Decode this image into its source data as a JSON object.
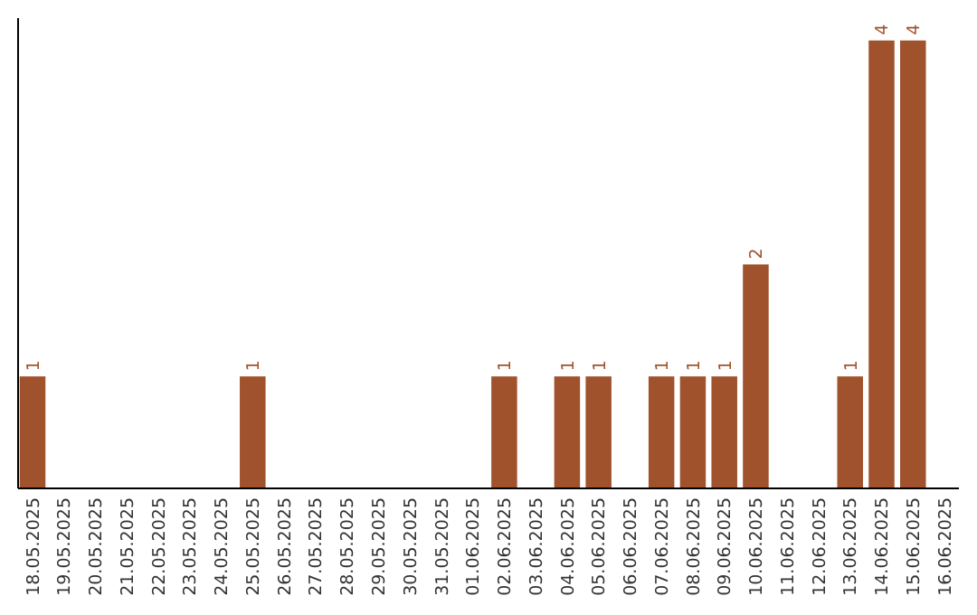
{
  "chart_data": {
    "type": "bar",
    "categories": [
      "18.05.2025",
      "19.05.2025",
      "20.05.2025",
      "21.05.2025",
      "22.05.2025",
      "23.05.2025",
      "24.05.2025",
      "25.05.2025",
      "26.05.2025",
      "27.05.2025",
      "28.05.2025",
      "29.05.2025",
      "30.05.2025",
      "31.05.2025",
      "01.06.2025",
      "02.06.2025",
      "03.06.2025",
      "04.06.2025",
      "05.06.2025",
      "06.06.2025",
      "07.06.2025",
      "08.06.2025",
      "09.06.2025",
      "10.06.2025",
      "11.06.2025",
      "12.06.2025",
      "13.06.2025",
      "14.06.2025",
      "15.06.2025",
      "16.06.2025"
    ],
    "values": [
      1,
      0,
      0,
      0,
      0,
      0,
      0,
      1,
      0,
      0,
      0,
      0,
      0,
      0,
      0,
      1,
      0,
      1,
      1,
      0,
      1,
      1,
      1,
      2,
      0,
      0,
      1,
      4,
      4,
      0
    ],
    "value_labels": [
      "1",
      null,
      null,
      null,
      null,
      null,
      null,
      "1",
      null,
      null,
      null,
      null,
      null,
      null,
      null,
      "1",
      null,
      "1",
      "1",
      null,
      "1",
      "1",
      "1",
      "2",
      null,
      null,
      "1",
      "4",
      "4",
      null
    ],
    "color": "#a0522d",
    "ylim": [
      0,
      4.2
    ],
    "tick_labels": "x"
  }
}
